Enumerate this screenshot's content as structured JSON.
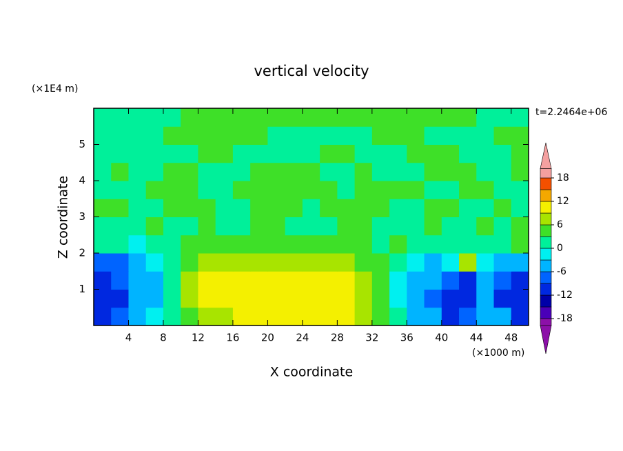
{
  "chart_data": {
    "type": "contour",
    "title": "vertical velocity",
    "xlabel": "X coordinate",
    "ylabel": "Z coordinate",
    "xunit": "(×1000 m)",
    "yunit": "(×1E4 m)",
    "time_label": "t=2.2464e+06",
    "xlim": [
      0,
      50
    ],
    "ylim": [
      0,
      6
    ],
    "xticks": [
      4,
      8,
      12,
      16,
      20,
      24,
      28,
      32,
      36,
      40,
      44,
      48
    ],
    "yticks": [
      1,
      2,
      3,
      4,
      5
    ],
    "x": [
      1,
      3,
      5,
      7,
      9,
      11,
      13,
      15,
      17,
      19,
      21,
      23,
      25,
      27,
      29,
      31,
      33,
      35,
      37,
      39,
      41,
      43,
      45,
      47,
      49
    ],
    "y": [
      0.25,
      0.75,
      1.25,
      1.75,
      2.25,
      2.75,
      3.25,
      3.75,
      4.25,
      4.75,
      5.25,
      5.75
    ],
    "z": [
      [
        -10,
        -8,
        -4,
        -2,
        2,
        5,
        7,
        8,
        10,
        10,
        10,
        10,
        10,
        10,
        10,
        8,
        5,
        1,
        -4,
        -6,
        -10,
        -8,
        -4,
        -6,
        -10
      ],
      [
        -12,
        -10,
        -5,
        -4,
        2,
        7,
        10,
        10,
        10,
        11,
        11,
        11,
        11,
        11,
        10,
        8,
        5,
        -1,
        -5,
        -8,
        -12,
        -10,
        -6,
        -10,
        -12
      ],
      [
        -12,
        -9,
        -6,
        -4,
        2,
        7,
        10,
        10,
        10,
        11,
        11,
        10,
        10,
        10,
        9,
        7,
        4,
        -1,
        -4,
        -6,
        -8,
        -10,
        -6,
        -8,
        -10
      ],
      [
        -9,
        -7,
        -4,
        -2,
        1,
        5,
        7,
        8,
        8,
        8,
        8,
        8,
        7,
        7,
        7,
        5,
        3,
        1,
        -2,
        -4,
        -3,
        7,
        -3,
        -6,
        -6
      ],
      [
        1,
        1,
        -1,
        1,
        1,
        3,
        4,
        4,
        4,
        4,
        4,
        4,
        4,
        4,
        3,
        3,
        1,
        4,
        1,
        1,
        1,
        1,
        1,
        1,
        4
      ],
      [
        1,
        1,
        1,
        4,
        1,
        1,
        4,
        1,
        1,
        4,
        4,
        1,
        1,
        1,
        4,
        4,
        1,
        1,
        1,
        4,
        1,
        1,
        4,
        1,
        4
      ],
      [
        4,
        4,
        1,
        1,
        4,
        4,
        4,
        1,
        1,
        4,
        4,
        4,
        1,
        4,
        4,
        4,
        4,
        1,
        1,
        4,
        4,
        1,
        1,
        4,
        1
      ],
      [
        1,
        1,
        1,
        4,
        4,
        4,
        1,
        1,
        4,
        4,
        4,
        4,
        4,
        4,
        1,
        4,
        4,
        4,
        4,
        1,
        1,
        4,
        4,
        1,
        1
      ],
      [
        1,
        4,
        1,
        1,
        4,
        4,
        1,
        1,
        1,
        4,
        4,
        4,
        4,
        1,
        1,
        4,
        1,
        1,
        1,
        4,
        4,
        4,
        1,
        1,
        4
      ],
      [
        1,
        1,
        1,
        1,
        1,
        1,
        4,
        4,
        1,
        1,
        1,
        1,
        1,
        4,
        4,
        1,
        1,
        1,
        4,
        4,
        4,
        1,
        1,
        1,
        4
      ],
      [
        1,
        1,
        1,
        1,
        4,
        4,
        4,
        4,
        4,
        4,
        1,
        1,
        1,
        1,
        1,
        1,
        4,
        4,
        4,
        1,
        1,
        1,
        1,
        4,
        4
      ],
      [
        1,
        1,
        1,
        1,
        1,
        4,
        4,
        4,
        4,
        4,
        4,
        4,
        4,
        4,
        4,
        4,
        4,
        4,
        4,
        4,
        4,
        4,
        1,
        1,
        1
      ]
    ],
    "levels": [
      -18,
      -15,
      -12,
      -9,
      -6,
      -3,
      0,
      3,
      6,
      9,
      12,
      15,
      18
    ],
    "colors": [
      "#8c10a8",
      "#4a00b8",
      "#0000a8",
      "#0028e0",
      "#0064ff",
      "#00b4ff",
      "#00f0f0",
      "#00f09a",
      "#3ee028",
      "#a8e400",
      "#f4f000",
      "#f4a800",
      "#f45000",
      "#f4a0a0"
    ],
    "cbar_ticks": [
      -18,
      -12,
      -6,
      0,
      6,
      12,
      18
    ]
  }
}
